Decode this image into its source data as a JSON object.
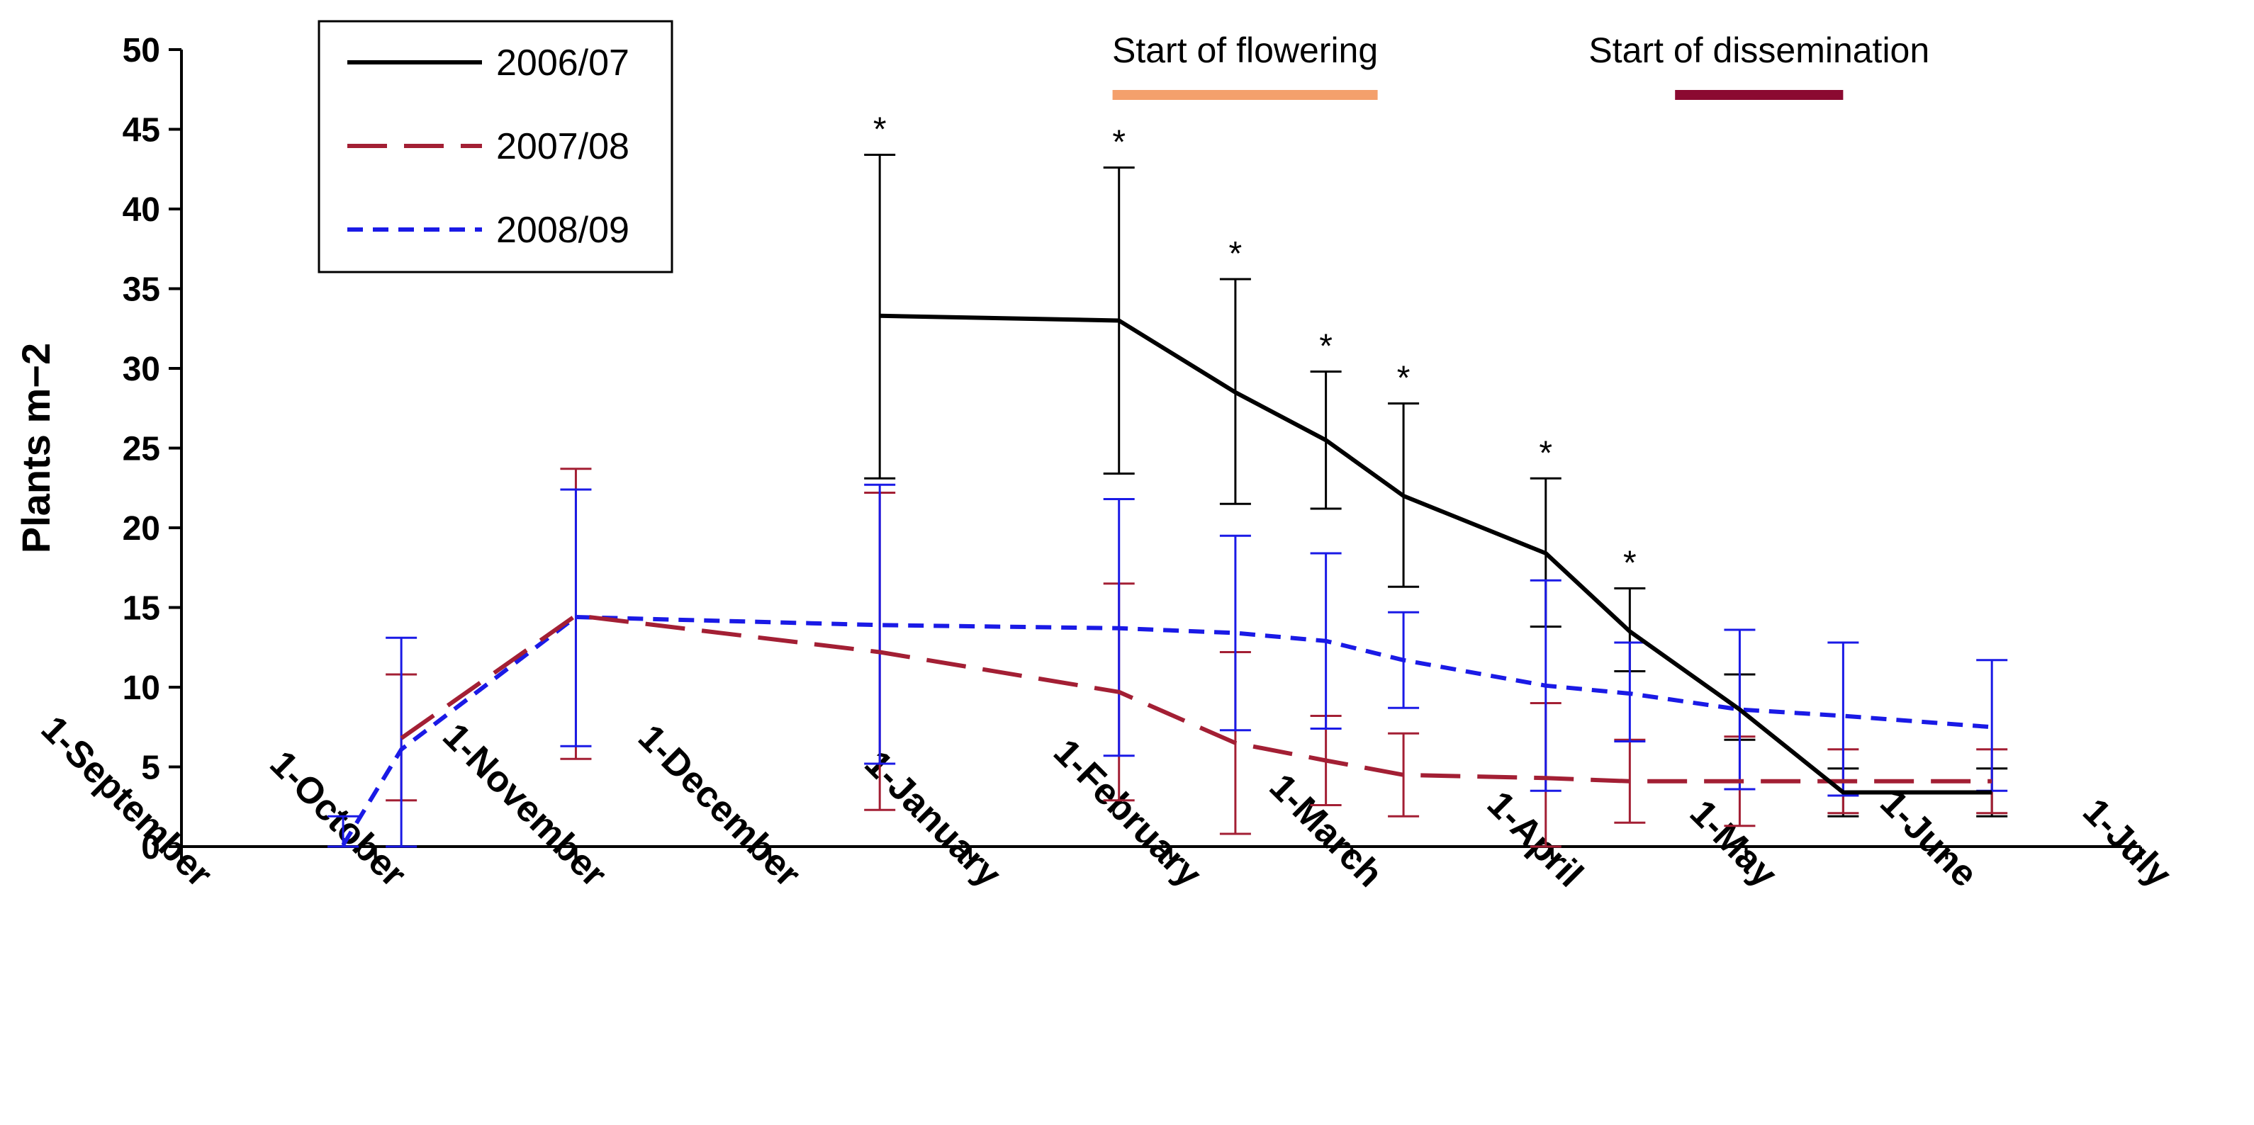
{
  "chart_data": {
    "type": "line",
    "title": "",
    "xlabel": "",
    "ylabel": "Plants m−2",
    "ylim": [
      0,
      50
    ],
    "yticks": [
      0,
      5,
      10,
      15,
      20,
      25,
      30,
      35,
      40,
      45,
      50
    ],
    "x_tick_labels": [
      "1-September",
      "1-October",
      "1-November",
      "1-December",
      "1-January",
      "1-February",
      "1-March",
      "1-April",
      "1-May",
      "1-June",
      "1-July"
    ],
    "x_unit": "days since 1-September",
    "x_tick_days": [
      0,
      30,
      61,
      91,
      122,
      153,
      181,
      212,
      242,
      273,
      303
    ],
    "legend_position": "top-left",
    "series": [
      {
        "name": "2006/07",
        "color": "#000000",
        "dash": "solid",
        "x": [
          108,
          145,
          163,
          177,
          189,
          211,
          224,
          241,
          257,
          280
        ],
        "values": [
          33.3,
          33.0,
          28.5,
          25.5,
          22.0,
          18.4,
          13.5,
          8.6,
          3.4,
          3.4
        ],
        "err_low": [
          10.2,
          9.6,
          7.0,
          4.3,
          5.7,
          4.6,
          2.5,
          1.9,
          1.5,
          1.5
        ],
        "err_high": [
          10.1,
          9.6,
          7.1,
          4.3,
          5.8,
          4.7,
          2.7,
          2.2,
          1.5,
          1.5
        ]
      },
      {
        "name": "2007/08",
        "color": "#a31f34",
        "dash": "long-dash",
        "x": [
          34,
          61,
          108,
          145,
          163,
          177,
          189,
          211,
          224,
          241,
          257,
          280
        ],
        "values": [
          6.8,
          14.5,
          12.2,
          9.7,
          6.5,
          5.4,
          4.5,
          4.3,
          4.1,
          4.1,
          4.1,
          4.1
        ],
        "err_low": [
          3.9,
          9.0,
          9.9,
          6.8,
          5.7,
          2.8,
          2.6,
          4.3,
          2.6,
          2.8,
          2.0,
          2.0
        ],
        "err_high": [
          4.0,
          9.2,
          10.0,
          6.8,
          5.7,
          2.8,
          2.6,
          4.7,
          2.6,
          2.8,
          2.0,
          2.0
        ]
      },
      {
        "name": "2008/09",
        "color": "#1a1ae6",
        "dash": "short-dash",
        "x": [
          25,
          34,
          61,
          108,
          145,
          163,
          177,
          189,
          211,
          224,
          241,
          257,
          280
        ],
        "values": [
          0.1,
          6.1,
          14.4,
          13.9,
          13.7,
          13.4,
          12.9,
          11.7,
          10.1,
          9.6,
          8.6,
          8.2,
          7.5
        ],
        "err_low": [
          0.1,
          6.1,
          8.1,
          8.7,
          8.0,
          6.1,
          5.5,
          3.0,
          6.6,
          3.0,
          5.0,
          5.0,
          4.0
        ],
        "err_high": [
          1.8,
          7.0,
          8.0,
          8.8,
          8.1,
          6.1,
          5.5,
          3.0,
          6.6,
          3.2,
          5.0,
          4.6,
          4.2
        ]
      }
    ],
    "significance": {
      "symbol": "*",
      "x": [
        108,
        145,
        163,
        177,
        189,
        211,
        224
      ]
    },
    "annotations": [
      {
        "text": "Start of flowering",
        "x_start": 144,
        "x_end": 185,
        "color": "#f4a06c"
      },
      {
        "text": "Start of dissemination",
        "x_start": 231,
        "x_end": 257,
        "color": "#8b0a31"
      }
    ]
  }
}
